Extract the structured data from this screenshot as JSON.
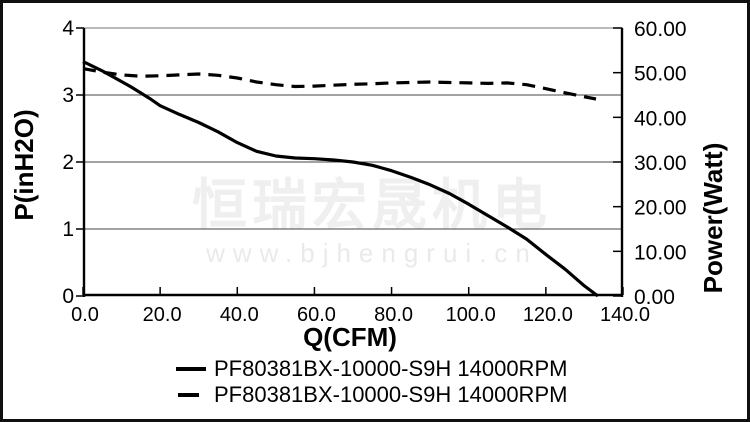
{
  "watermark": {
    "line1": "恒瑞宏晟机电",
    "line2": "www.bjhengrui.cn",
    "color1": "#efefef",
    "color2": "#eaeaea"
  },
  "axes": {
    "left_title": "P(inH2O)",
    "bottom_title": "Q(CFM)",
    "right_title": "Power(Watt)",
    "left_ticks": [
      {
        "label": "4",
        "value": 4
      },
      {
        "label": "3",
        "value": 3
      },
      {
        "label": "2",
        "value": 2
      },
      {
        "label": "1",
        "value": 1
      },
      {
        "label": "0",
        "value": 0
      }
    ],
    "right_ticks": [
      {
        "label": "60.00",
        "value": 60
      },
      {
        "label": "50.00",
        "value": 50
      },
      {
        "label": "40.00",
        "value": 40
      },
      {
        "label": "30.00",
        "value": 30
      },
      {
        "label": "20.00",
        "value": 20
      },
      {
        "label": "10.00",
        "value": 10
      },
      {
        "label": "0.00",
        "value": 0
      }
    ],
    "bottom_ticks": [
      {
        "label": "0.0",
        "value": 0
      },
      {
        "label": "20.0",
        "value": 20
      },
      {
        "label": "40.0",
        "value": 40
      },
      {
        "label": "60.0",
        "value": 60
      },
      {
        "label": "80.0",
        "value": 80
      },
      {
        "label": "100.0",
        "value": 100
      },
      {
        "label": "120.0",
        "value": 120
      },
      {
        "label": "140.0",
        "value": 140
      }
    ]
  },
  "legend": [
    {
      "style": "solid",
      "label": "PF80381BX-10000-S9H 14000RPM"
    },
    {
      "style": "dashed",
      "label": "PF80381BX-10000-S9H 14000RPM"
    }
  ],
  "chart_data": {
    "type": "line",
    "title": "",
    "xlabel": "Q(CFM)",
    "ylabel_left": "P(inH2O)",
    "ylabel_right": "Power(Watt)",
    "xlim": [
      0,
      140
    ],
    "ylim_left": [
      0,
      4
    ],
    "ylim_right": [
      0,
      60
    ],
    "grid_left_values": [
      1,
      2,
      3
    ],
    "legend_position": "bottom",
    "colors": {
      "curve": "#000000",
      "grid": "#444444",
      "axis": "#000000",
      "plot_border_top": "#909090"
    },
    "series": [
      {
        "name": "PF80381BX-10000-S9H 14000RPM",
        "style": "solid",
        "axis": "left",
        "unit": "inH2O",
        "x": [
          0,
          2.5,
          5,
          7.5,
          10,
          12.5,
          15,
          17.5,
          20,
          25,
          30,
          35,
          40,
          45,
          50,
          55,
          60,
          65,
          70,
          75,
          80,
          85,
          90,
          95,
          100,
          105,
          110,
          115,
          120,
          125,
          130,
          133.5
        ],
        "y": [
          3.5,
          3.43,
          3.36,
          3.28,
          3.2,
          3.12,
          3.03,
          2.94,
          2.84,
          2.71,
          2.59,
          2.45,
          2.29,
          2.16,
          2.09,
          2.06,
          2.05,
          2.03,
          2.0,
          1.95,
          1.87,
          1.77,
          1.66,
          1.53,
          1.37,
          1.2,
          1.03,
          0.85,
          0.62,
          0.4,
          0.15,
          0.0
        ]
      },
      {
        "name": "PF80381BX-10000-S9H 14000RPM",
        "style": "dashed",
        "axis": "right",
        "unit": "Watt",
        "x": [
          0,
          5,
          10,
          15,
          20,
          25,
          30,
          35,
          40,
          45,
          50,
          55,
          60,
          65,
          70,
          75,
          80,
          85,
          90,
          95,
          100,
          105,
          110,
          115,
          120,
          125,
          130,
          133
        ],
        "y": [
          50.9,
          50.1,
          49.5,
          49.2,
          49.3,
          49.5,
          49.7,
          49.4,
          48.8,
          47.9,
          47.3,
          46.9,
          47.0,
          47.2,
          47.4,
          47.5,
          47.7,
          47.8,
          47.9,
          47.8,
          47.7,
          47.6,
          47.7,
          47.3,
          46.4,
          45.5,
          44.6,
          44.1
        ]
      }
    ]
  }
}
